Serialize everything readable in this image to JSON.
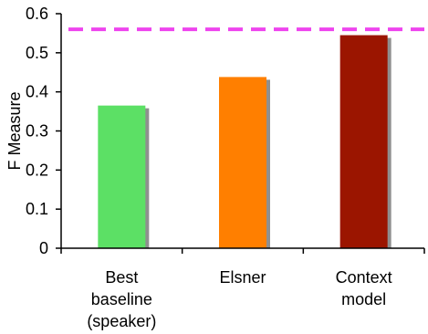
{
  "chart_data": {
    "type": "bar",
    "title": "",
    "xlabel": "",
    "ylabel": "F Measure",
    "ylim": [
      0,
      0.6
    ],
    "yticks": [
      "0",
      "0.1",
      "0.2",
      "0.3",
      "0.4",
      "0.5",
      "0.6"
    ],
    "grid": false,
    "categories": [
      [
        "Best",
        "baseline",
        "(speaker)"
      ],
      [
        "Elsner"
      ],
      [
        "Context",
        "model"
      ]
    ],
    "values": [
      0.365,
      0.438,
      0.545
    ],
    "bar_colors": [
      "#5ce065",
      "#ff7f00",
      "#9b1500"
    ],
    "shadow_color": "#8f8f8f",
    "reference_line": {
      "value": 0.56,
      "style": "dashed",
      "color": "#ee44ee"
    }
  }
}
